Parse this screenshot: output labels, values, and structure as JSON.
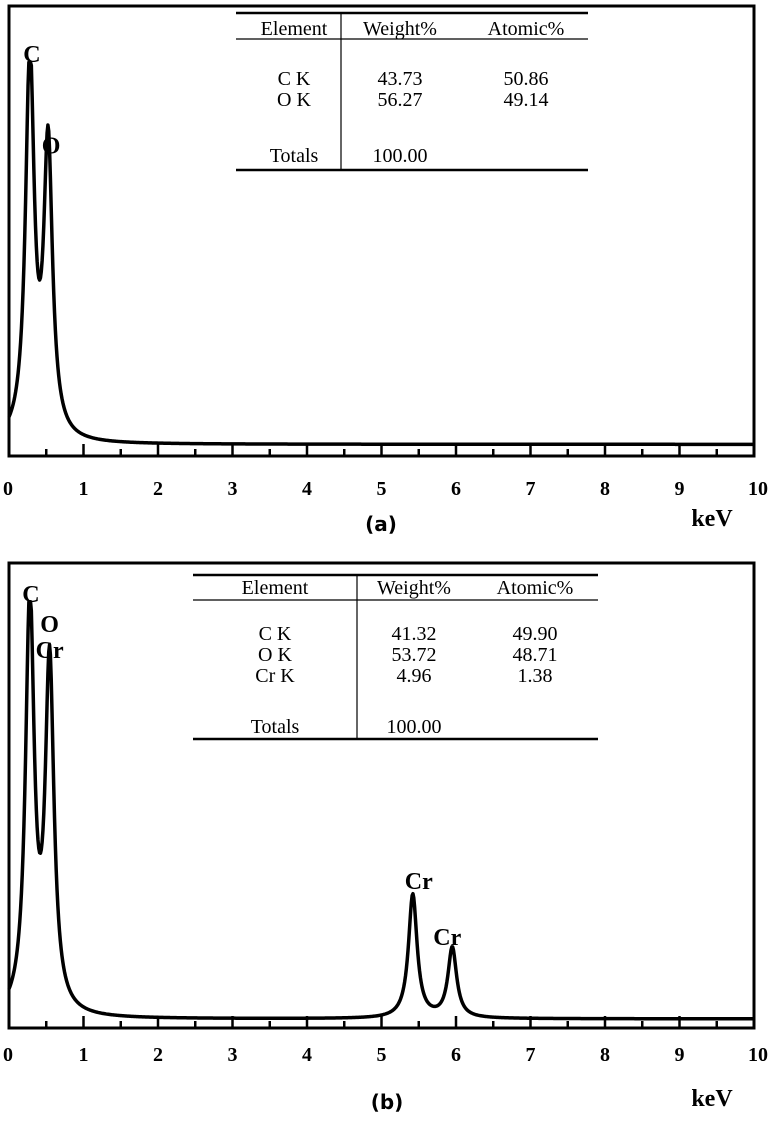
{
  "chart_data": [
    {
      "type": "line",
      "title": "(a)",
      "xlabel": "keV",
      "ylabel": "",
      "xlim": [
        0,
        10
      ],
      "xticks": [
        "0",
        "1",
        "2",
        "3",
        "4",
        "5",
        "6",
        "7",
        "8",
        "9",
        "10"
      ],
      "background": 0.02,
      "peaks": [
        {
          "label": "C",
          "x": 0.28,
          "height": 1.0
        },
        {
          "label": "O",
          "x": 0.525,
          "height": 0.76
        }
      ],
      "table": {
        "headers": [
          "Element",
          "Weight%",
          "Atomic%"
        ],
        "rows": [
          [
            "C K",
            "43.73",
            "50.86"
          ],
          [
            "O K",
            "56.27",
            "49.14"
          ]
        ],
        "totals_label": "Totals",
        "totals_value": "100.00"
      }
    },
    {
      "type": "line",
      "title": "(b)",
      "xlabel": "keV",
      "ylabel": "",
      "xlim": [
        0,
        10
      ],
      "xticks": [
        "0",
        "1",
        "2",
        "3",
        "4",
        "5",
        "6",
        "7",
        "8",
        "9",
        "10"
      ],
      "background": 0.01,
      "peaks": [
        {
          "label": "C",
          "x": 0.28,
          "height": 1.0
        },
        {
          "label": "O\nCr",
          "x": 0.545,
          "height": 0.84
        },
        {
          "label": "Cr",
          "x": 5.42,
          "height": 0.3
        },
        {
          "label": "Cr",
          "x": 5.95,
          "height": 0.17
        }
      ],
      "table": {
        "headers": [
          "Element",
          "Weight%",
          "Atomic%"
        ],
        "rows": [
          [
            "C K",
            "41.32",
            "49.90"
          ],
          [
            "O K",
            "53.72",
            "48.71"
          ],
          [
            "Cr K",
            "4.96",
            "1.38"
          ]
        ],
        "totals_label": "Totals",
        "totals_value": "100.00"
      }
    }
  ]
}
